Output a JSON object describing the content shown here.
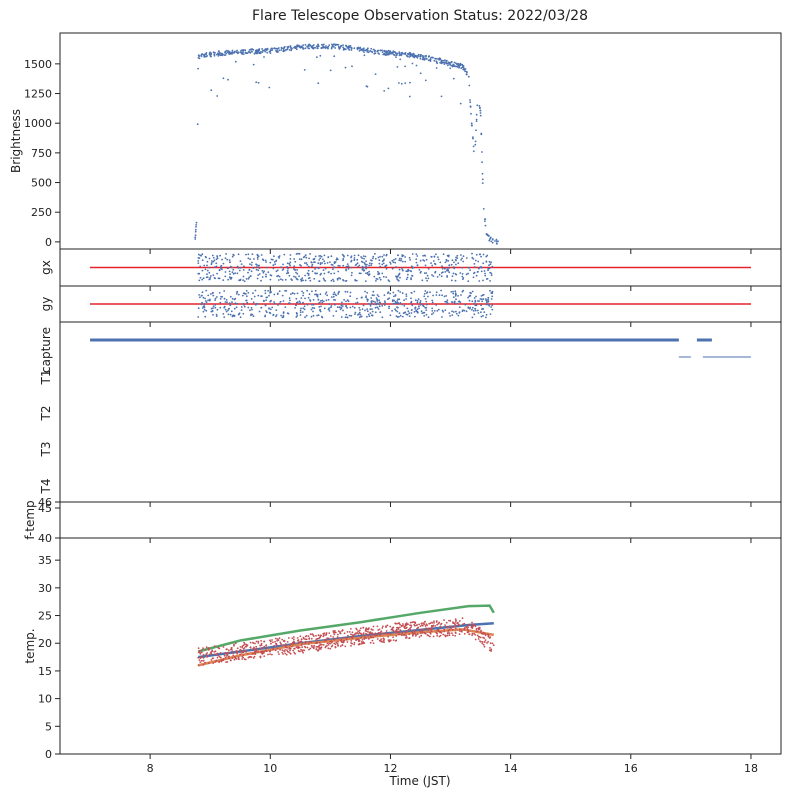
{
  "title": "Flare Telescope Observation Status: 2022/03/28",
  "colors": {
    "blue": "#4c72b0",
    "orange": "#dd8452",
    "green": "#55a868",
    "red": "#c44e52",
    "line_red": "#e3242b",
    "axis": "#222222"
  },
  "chart_data": {
    "type": "scatter",
    "xlabel": "Time (JST)",
    "xlim": [
      6.5,
      18.5
    ],
    "x_ticks": [
      8,
      10,
      12,
      14,
      16,
      18
    ],
    "x_tick_labels": [
      "8",
      "10",
      "12",
      "14",
      "16",
      "18"
    ],
    "panels": [
      {
        "ylabel": "Brightness",
        "ylim": [
          -60,
          1760
        ],
        "y_ticks": [
          0,
          250,
          500,
          750,
          1000,
          1250,
          1500
        ],
        "y_tick_labels": [
          "0",
          "250",
          "500",
          "750",
          "1000",
          "1250",
          "1500"
        ],
        "series": [
          {
            "type": "scatter",
            "color": "blue",
            "x": [
              8.75,
              8.78,
              8.8,
              8.85,
              8.9,
              9.0,
              9.1,
              9.3,
              9.5,
              9.7,
              10.0,
              10.3,
              10.6,
              10.9,
              11.2,
              11.5,
              11.8,
              12.0,
              12.2,
              12.4,
              12.6,
              12.8,
              13.0,
              13.2,
              13.3,
              13.35,
              13.4,
              13.45,
              13.5,
              13.55,
              13.6,
              13.7,
              13.8
            ],
            "y": [
              20,
              250,
              1560,
              1570,
              1575,
              1580,
              1585,
              1595,
              1600,
              1605,
              1610,
              1630,
              1645,
              1650,
              1640,
              1620,
              1600,
              1590,
              1580,
              1570,
              1550,
              1530,
              1500,
              1480,
              1400,
              1000,
              700,
              1200,
              1100,
              300,
              50,
              5,
              0
            ]
          }
        ]
      },
      {
        "ylabel": "gx",
        "ylim": [
          -1.2,
          1.2
        ],
        "series": [
          {
            "type": "line",
            "color": "line_red",
            "x": [
              7.0,
              18.0
            ],
            "y": [
              0,
              0
            ]
          },
          {
            "type": "scatter_noise",
            "color": "blue",
            "x_range": [
              8.8,
              13.7
            ],
            "center": 0,
            "spread": 0.9
          }
        ]
      },
      {
        "ylabel": "gy",
        "ylim": [
          -1.2,
          1.2
        ],
        "series": [
          {
            "type": "line",
            "color": "line_red",
            "x": [
              7.0,
              18.0
            ],
            "y": [
              0,
              0
            ]
          },
          {
            "type": "scatter_noise",
            "color": "blue",
            "x_range": [
              8.8,
              13.7
            ],
            "center": 0,
            "spread": 0.9
          }
        ]
      },
      {
        "y_categories": [
          "capture",
          "T1",
          "T2",
          "T3",
          "T4"
        ],
        "series": [
          {
            "type": "segment",
            "color": "blue",
            "category": "capture",
            "x": [
              7.0,
              16.8
            ]
          },
          {
            "type": "segment",
            "color": "blue",
            "category": "capture",
            "x": [
              17.1,
              17.35
            ]
          },
          {
            "type": "segment",
            "color": "blue",
            "category": "capture_low",
            "x": [
              16.8,
              17.0
            ]
          },
          {
            "type": "segment",
            "color": "blue",
            "category": "capture_low",
            "x": [
              17.2,
              18.0
            ]
          }
        ]
      },
      {
        "ylabel": "f-temp",
        "ylim": [
          40,
          46
        ],
        "y_ticks": [
          40,
          45,
          46
        ],
        "y_tick_labels": [
          "40",
          "45",
          "46"
        ],
        "series": []
      },
      {
        "ylabel": "temp.",
        "ylim": [
          0,
          39
        ],
        "y_ticks": [
          0,
          5,
          10,
          15,
          20,
          25,
          30,
          35
        ],
        "y_tick_labels": [
          "0",
          "5",
          "10",
          "15",
          "20",
          "25",
          "30",
          "35"
        ],
        "series": [
          {
            "type": "line",
            "color": "green",
            "x": [
              8.8,
              9.5,
              10.5,
              11.5,
              12.5,
              13.3,
              13.65,
              13.72
            ],
            "y": [
              18.5,
              20.5,
              22.3,
              23.8,
              25.5,
              26.7,
              26.8,
              25.5
            ]
          },
          {
            "type": "line",
            "color": "blue",
            "x": [
              8.8,
              9.5,
              10.5,
              11.5,
              12.5,
              13.3,
              13.72
            ],
            "y": [
              17.5,
              18.5,
              20.0,
              21.3,
              22.4,
              23.3,
              23.6
            ]
          },
          {
            "type": "line",
            "color": "orange",
            "x": [
              8.8,
              9.5,
              10.5,
              11.5,
              12.5,
              13.2,
              13.72
            ],
            "y": [
              16.0,
              17.8,
              19.8,
              21.0,
              22.0,
              22.5,
              21.5
            ]
          },
          {
            "type": "scatter_noise",
            "color": "red",
            "x_range": [
              8.8,
              13.72
            ],
            "trend_x": [
              8.8,
              9.5,
              10.5,
              11.5,
              12.5,
              13.3,
              13.72
            ],
            "trend_y": [
              17.5,
              18.5,
              19.8,
              21.3,
              22.5,
              23.0,
              19.5
            ],
            "spread": 1.6
          }
        ]
      }
    ]
  }
}
